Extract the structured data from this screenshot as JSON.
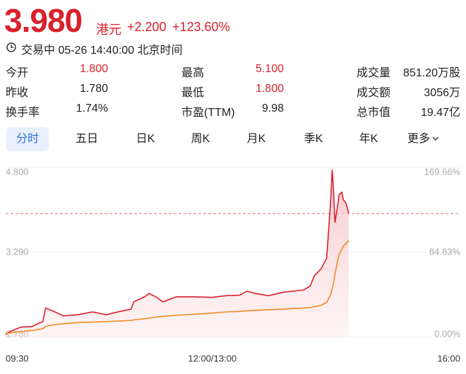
{
  "quote": {
    "price": {
      "value": 3.98,
      "label": "3.980"
    },
    "currency": "港元",
    "change": "+2.200",
    "change_pct": "+123.60%",
    "status": "交易中 05-26 14:40:00 北京时间"
  },
  "stats": [
    [
      {
        "label": "今开",
        "value": "1.800"
      },
      {
        "label": "最高",
        "value": "5.100"
      },
      {
        "label": "成交量",
        "value": "851.20万股"
      }
    ],
    [
      {
        "label": "昨收",
        "value": "1.780"
      },
      {
        "label": "最低",
        "value": "1.800"
      },
      {
        "label": "成交额",
        "value": "3056万"
      }
    ],
    [
      {
        "label": "换手率",
        "value": "1.74%"
      },
      {
        "label": "市盈(TTM)",
        "value": "9.98"
      },
      {
        "label": "总市值",
        "value": "19.47亿"
      }
    ]
  ],
  "tabs": [
    "分时",
    "五日",
    "日K",
    "周K",
    "月K",
    "季K",
    "年K",
    "更多"
  ],
  "chart_data": {
    "type": "line",
    "x": [
      0,
      4,
      11,
      19,
      27,
      29,
      34,
      42,
      52,
      63,
      73,
      83,
      91,
      93,
      101,
      104,
      109,
      114,
      124,
      137,
      150,
      160,
      170,
      175,
      183,
      191,
      201,
      216,
      221,
      224,
      229,
      233,
      236,
      237,
      238,
      239,
      241,
      242,
      244,
      245,
      247,
      249
    ],
    "series": [
      {
        "color": "#d9202b",
        "values": [
          1.83,
          1.89,
          1.96,
          1.97,
          2.06,
          2.3,
          2.25,
          2.16,
          2.18,
          2.23,
          2.18,
          2.24,
          2.28,
          2.41,
          2.5,
          2.56,
          2.5,
          2.41,
          2.5,
          2.5,
          2.49,
          2.52,
          2.53,
          2.6,
          2.55,
          2.52,
          2.58,
          2.62,
          2.69,
          2.87,
          3.0,
          3.19,
          4.26,
          4.76,
          4.38,
          3.82,
          4.13,
          4.32,
          4.36,
          4.23,
          4.17,
          3.98
        ]
      },
      {
        "color": "#f08a24",
        "values": [
          1.85,
          1.86,
          1.88,
          1.9,
          1.93,
          1.97,
          2.0,
          2.02,
          2.04,
          2.05,
          2.06,
          2.07,
          2.08,
          2.09,
          2.11,
          2.12,
          2.14,
          2.15,
          2.17,
          2.19,
          2.21,
          2.23,
          2.24,
          2.25,
          2.26,
          2.27,
          2.28,
          2.3,
          2.31,
          2.32,
          2.35,
          2.4,
          2.55,
          2.65,
          2.75,
          2.9,
          3.15,
          3.25,
          3.35,
          3.4,
          3.45,
          3.5
        ]
      }
    ],
    "xlim": [
      0,
      330
    ],
    "xticks": [
      {
        "value": 0,
        "label": "09:30"
      },
      {
        "value": 150,
        "label": "12:00/13:00"
      },
      {
        "value": 330,
        "label": "16:00"
      }
    ],
    "ylim": [
      1.78,
      4.8
    ],
    "yticks": [
      {
        "value": 1.78,
        "label": "1.780"
      },
      {
        "value": 3.29,
        "label": "3.290"
      },
      {
        "value": 4.8,
        "label": "4.800"
      }
    ],
    "y2lim": [
      0,
      169.66
    ],
    "y2ticks": [
      {
        "value": 0,
        "label": "0.00%"
      },
      {
        "value": 84.83,
        "label": "84.83%"
      },
      {
        "value": 169.66,
        "label": "169.66%"
      }
    ]
  }
}
